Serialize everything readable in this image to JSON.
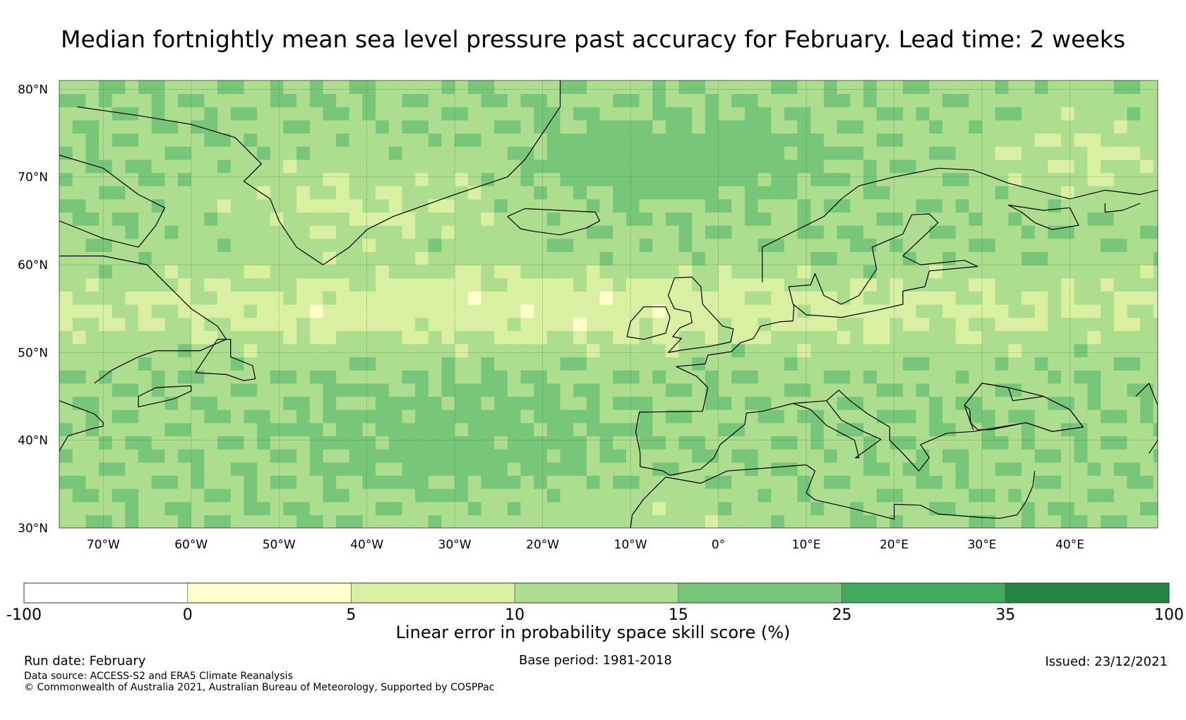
{
  "title": "Median fortnightly mean sea level pressure past accuracy for February. Lead time: 2 weeks",
  "map": {
    "lat_labels": [
      "80°N",
      "70°N",
      "60°N",
      "50°N",
      "40°N",
      "30°N"
    ],
    "lon_labels": [
      "70°W",
      "60°W",
      "50°W",
      "40°W",
      "30°W",
      "20°W",
      "10°W",
      "0°",
      "10°E",
      "20°E",
      "30°E",
      "40°E"
    ],
    "extent": {
      "lon_min": -75,
      "lon_max": 50,
      "lat_min": 30,
      "lat_max": 81
    },
    "gridlines": true,
    "coastline_color": "#000000"
  },
  "colorbar": {
    "bounds": [
      "-100",
      "0",
      "5",
      "10",
      "15",
      "25",
      "35",
      "100"
    ],
    "colors": [
      "#ffffff",
      "#ffffcc",
      "#d9f0a3",
      "#addd8e",
      "#78c679",
      "#41ab5d",
      "#238443"
    ],
    "label": "Linear error in probability space skill score (%)"
  },
  "footer": {
    "run_date": "Run date: February",
    "base_period": "Base period: 1981-2018",
    "issued": "Issued: 23/12/2021",
    "data_source": "Data source: ACCESS-S2 and ERA5 Climate Reanalysis",
    "copyright": "© Commonwealth of Australia 2021, Australian Bureau of Meteorology, Supported by COSPPac"
  }
}
